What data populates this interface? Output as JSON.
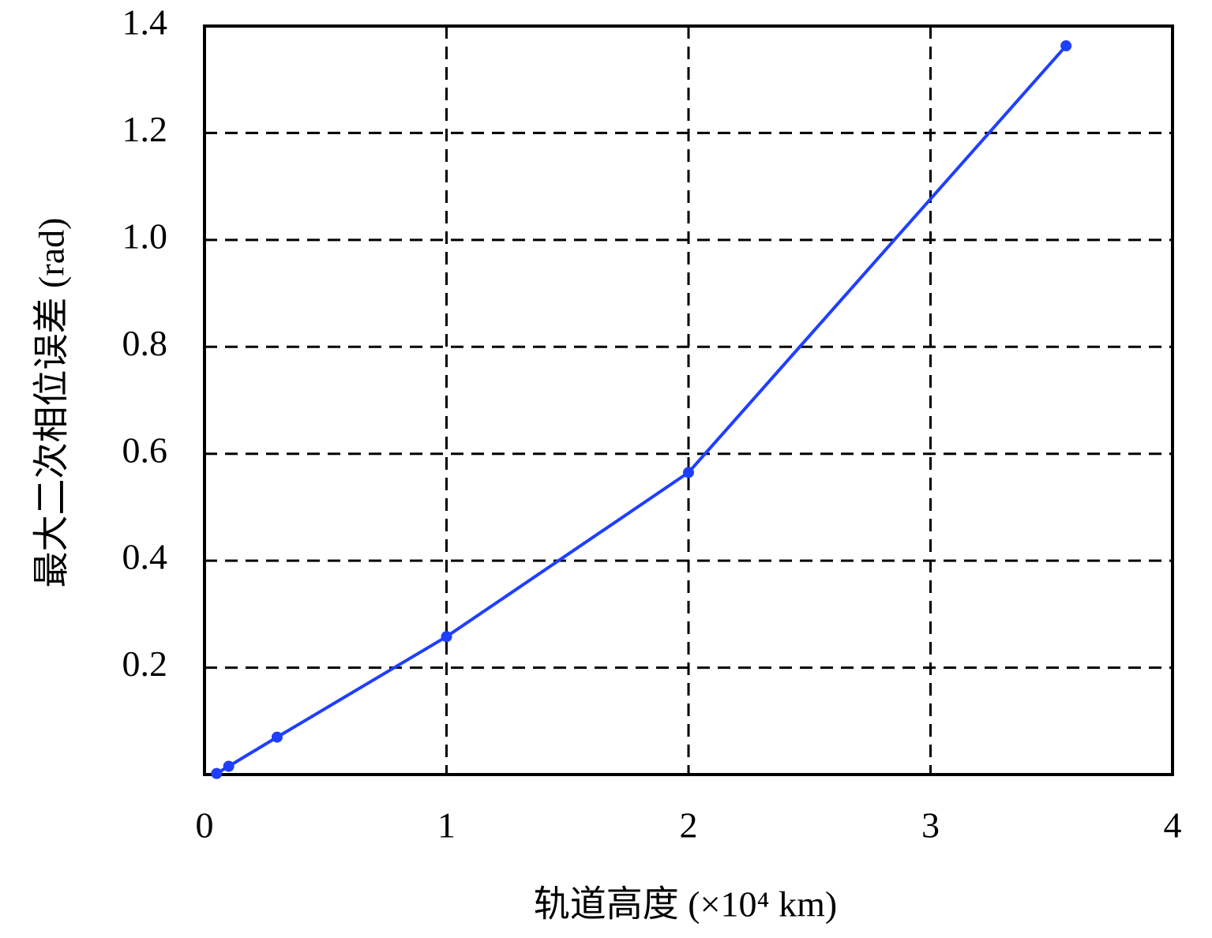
{
  "chart_data": {
    "type": "line",
    "x_label": "轨道高度 (×10⁴ km)",
    "y_label": "最大二次相位误差 (rad)",
    "series": [
      {
        "color": "#1f3fff",
        "x": [
          0.05,
          0.1,
          0.3,
          1.0,
          2.0,
          3.56
        ],
        "values": [
          0.002,
          0.0155,
          0.07,
          0.258,
          0.565,
          1.363
        ]
      }
    ],
    "xlim": [
      0,
      4
    ],
    "xticks": [
      0,
      1,
      2,
      3,
      4
    ],
    "ylim": [
      0,
      1.4
    ],
    "yticks": [
      0.2,
      0.4,
      0.6,
      0.8,
      {
        "value": 1,
        "label": "1.0"
      },
      1.2,
      1.4
    ],
    "grid": true
  }
}
